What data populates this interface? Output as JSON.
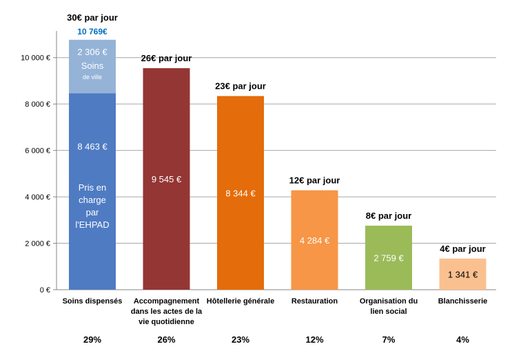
{
  "chart_data": {
    "type": "bar",
    "stacked": true,
    "categories": [
      [
        "Soins dispensés"
      ],
      [
        "Accompagnement",
        "dans les actes de la",
        "vie quotidienne"
      ],
      [
        "Hôtellerie générale"
      ],
      [
        "Restauration"
      ],
      [
        "Organisation du",
        "lien social"
      ],
      [
        "Blanchisserie"
      ]
    ],
    "values": [
      8463,
      9545,
      8344,
      4284,
      2759,
      1341
    ],
    "value_labels": [
      "8 463 €",
      "9 545 €",
      "8 344 €",
      "4 284 €",
      "2 759 €",
      "1 341 €"
    ],
    "bar_colors": [
      "#4f7bc3",
      "#943634",
      "#e46c0a",
      "#f79646",
      "#9bbb59",
      "#fac090"
    ],
    "inbar_text_colors": [
      "#ffffff",
      "#ffffff",
      "#ffffff",
      "#ffffff",
      "#ffffff",
      "#000000"
    ],
    "stack_top": {
      "category_index": 0,
      "value": 2306,
      "color": "#95b3d7",
      "label": "2 306 €",
      "sublabel": "Soins",
      "sublabel2": "de ville"
    },
    "bottom_segment_note": [
      "Pris en",
      "charge",
      "par",
      "l'EHPAD"
    ],
    "total_label": "10 769€",
    "total_label_color": "#0070c0",
    "per_day_labels": [
      "30€ par jour",
      "26€ par jour",
      "23€ par jour",
      "12€ par jour",
      "8€ par jour",
      "4€ par jour"
    ],
    "percentages": [
      "29%",
      "26%",
      "23%",
      "12%",
      "7%",
      "4%"
    ],
    "y_ticks": [
      0,
      2000,
      4000,
      6000,
      8000,
      10000
    ],
    "y_tick_labels": [
      "0 €",
      "2 000 €",
      "4 000 €",
      "6 000 €",
      "8 000 €",
      "10 000 €"
    ],
    "ylim": [
      0,
      11000
    ],
    "grid": true,
    "legend": "none"
  }
}
